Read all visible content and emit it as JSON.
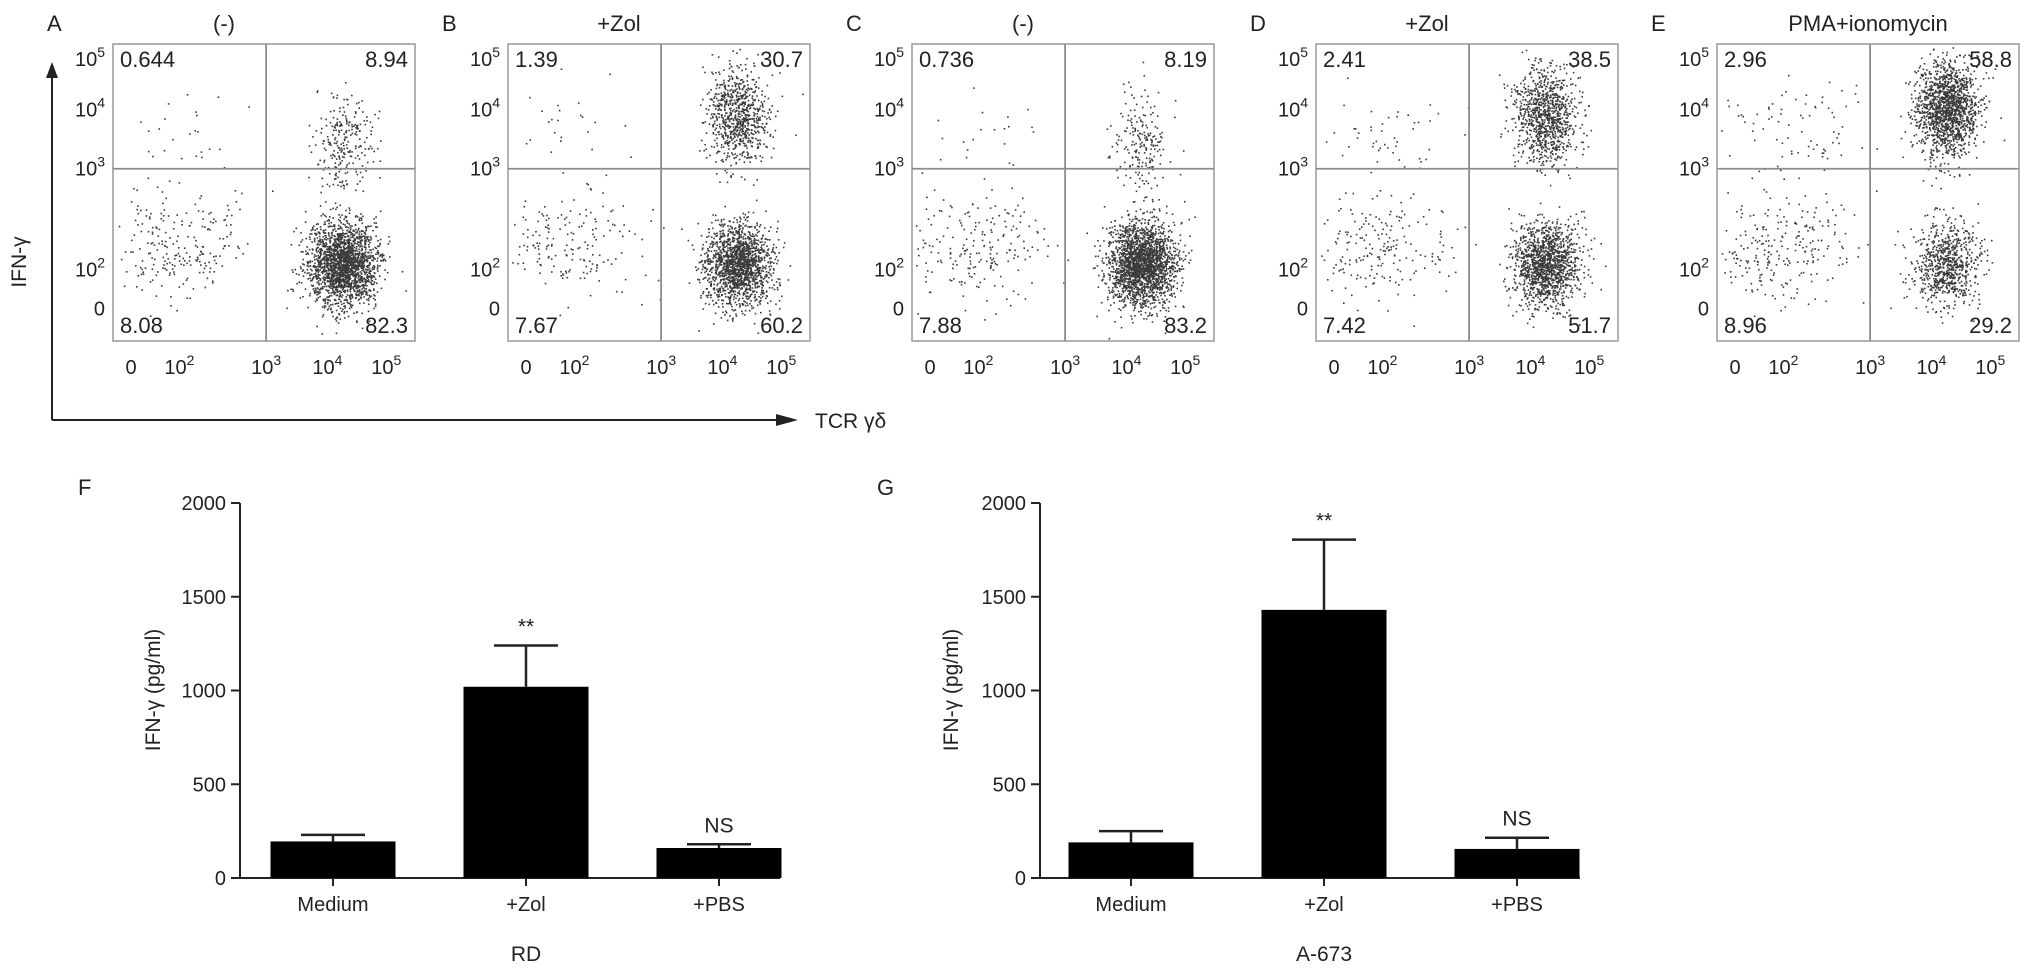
{
  "colors": {
    "ink": "#222222",
    "dots": "#3a3a3a",
    "gate": "#8c8c8c",
    "frame": "#999999",
    "bar": "#000000"
  },
  "flow_common": {
    "y_axis_title": "IFN-γ",
    "x_axis_title": "TCR γδ",
    "x_ticks": [
      {
        "base": "0",
        "exp": ""
      },
      {
        "base": "10",
        "exp": "2"
      },
      {
        "base": "10",
        "exp": "3"
      },
      {
        "base": "10",
        "exp": "4"
      },
      {
        "base": "10",
        "exp": "5"
      }
    ],
    "y_ticks": [
      {
        "base": "0",
        "exp": ""
      },
      {
        "base": "10",
        "exp": "2"
      },
      {
        "base": "10",
        "exp": "3"
      },
      {
        "base": "10",
        "exp": "4"
      },
      {
        "base": "10",
        "exp": "5"
      }
    ]
  },
  "chart_data": [
    {
      "type": "scatter",
      "panel": "A",
      "condition": "(-)",
      "quadrants": {
        "upper_left": "0.644",
        "upper_right": "8.94",
        "lower_left": "8.08",
        "lower_right": "82.3"
      }
    },
    {
      "type": "scatter",
      "panel": "B",
      "condition": "+Zol",
      "quadrants": {
        "upper_left": "1.39",
        "upper_right": "30.7",
        "lower_left": "7.67",
        "lower_right": "60.2"
      }
    },
    {
      "type": "scatter",
      "panel": "C",
      "condition": "(-)",
      "quadrants": {
        "upper_left": "0.736",
        "upper_right": "8.19",
        "lower_left": "7.88",
        "lower_right": "83.2"
      }
    },
    {
      "type": "scatter",
      "panel": "D",
      "condition": "+Zol",
      "quadrants": {
        "upper_left": "2.41",
        "upper_right": "38.5",
        "lower_left": "7.42",
        "lower_right": "51.7"
      }
    },
    {
      "type": "scatter",
      "panel": "E",
      "condition": "PMA+ionomycin",
      "quadrants": {
        "upper_left": "2.96",
        "upper_right": "58.8",
        "lower_left": "8.96",
        "lower_right": "29.2"
      }
    },
    {
      "type": "bar",
      "panel": "F",
      "ylabel": "IFN-γ (pg/ml)",
      "xlabel": "RD",
      "ylim": [
        0,
        2000
      ],
      "yticks": [
        "0",
        "500",
        "1000",
        "1500",
        "2000"
      ],
      "categories": [
        "Medium",
        "+Zol",
        "+PBS"
      ],
      "values": [
        195,
        1020,
        160
      ],
      "errors": [
        35,
        220,
        20
      ],
      "significance": [
        "",
        "**",
        "NS"
      ]
    },
    {
      "type": "bar",
      "panel": "G",
      "ylabel": "IFN-γ (pg/ml)",
      "xlabel": "A-673",
      "ylim": [
        0,
        2000
      ],
      "yticks": [
        "0",
        "500",
        "1000",
        "1500",
        "2000"
      ],
      "categories": [
        "Medium",
        "+Zol",
        "+PBS"
      ],
      "values": [
        190,
        1430,
        155
      ],
      "errors": [
        60,
        375,
        60
      ],
      "significance": [
        "",
        "**",
        "NS"
      ]
    }
  ]
}
